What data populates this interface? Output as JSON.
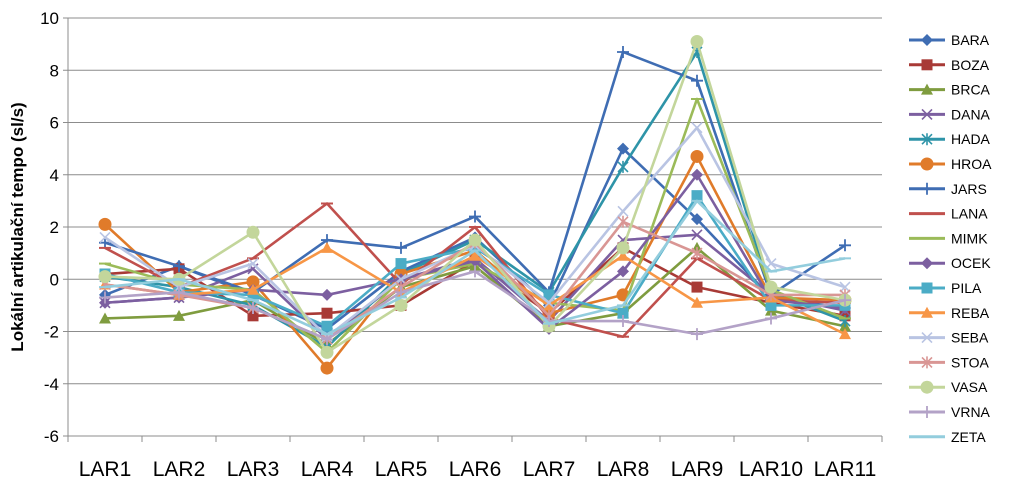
{
  "chart_data": {
    "type": "line",
    "ylabel": "Lokální artikulační tempo (sl/s)",
    "xlabel": "",
    "ylim": [
      -6,
      10
    ],
    "yticks": [
      -6,
      -4,
      -2,
      0,
      2,
      4,
      6,
      8,
      10
    ],
    "grid": "horizontal",
    "legend_placement": "right",
    "categories": [
      "LAR1",
      "LAR2",
      "LAR3",
      "LAR4",
      "LAR5",
      "LAR6",
      "LAR7",
      "LAR8",
      "LAR9",
      "LAR10",
      "LAR11"
    ],
    "series": [
      {
        "name": "BARA",
        "color": "#3F6DB3",
        "marker": "diamond",
        "values": [
          -0.6,
          0.5,
          -0.6,
          -1.9,
          0.3,
          1.6,
          -1.0,
          5.0,
          2.3,
          -0.7,
          -1.1
        ]
      },
      {
        "name": "BOZA",
        "color": "#A83A36",
        "marker": "square",
        "values": [
          0.2,
          0.4,
          -1.4,
          -1.3,
          -1.0,
          0.7,
          -1.3,
          1.2,
          -0.3,
          -0.9,
          -1.4
        ]
      },
      {
        "name": "BRCA",
        "color": "#7F9C3F",
        "marker": "triangle",
        "values": [
          -1.5,
          -1.4,
          -0.8,
          -2.5,
          -0.3,
          0.5,
          -1.8,
          -1.3,
          1.2,
          -1.2,
          -1.8
        ]
      },
      {
        "name": "DANA",
        "color": "#7C5FA0",
        "marker": "x",
        "values": [
          -0.9,
          -0.7,
          0.4,
          -2.3,
          0.0,
          0.8,
          -1.6,
          1.5,
          1.7,
          -0.6,
          -1.2
        ]
      },
      {
        "name": "HADA",
        "color": "#2E94A8",
        "marker": "asterisk",
        "values": [
          0.1,
          -0.3,
          -1.0,
          -2.6,
          0.2,
          1.5,
          -0.5,
          4.3,
          8.7,
          -0.5,
          -1.6
        ]
      },
      {
        "name": "HROA",
        "color": "#E07B2A",
        "marker": "circle",
        "values": [
          2.1,
          -0.5,
          -0.1,
          -3.4,
          0.2,
          1.1,
          -1.3,
          -0.6,
          4.7,
          -0.7,
          -0.8
        ]
      },
      {
        "name": "JARS",
        "color": "#3F6DB3",
        "marker": "plus",
        "values": [
          1.4,
          0.5,
          -0.5,
          1.5,
          1.2,
          2.4,
          -0.5,
          8.7,
          7.6,
          -0.6,
          1.3
        ]
      },
      {
        "name": "LANA",
        "color": "#C0504D",
        "marker": "dash",
        "values": [
          1.2,
          -0.3,
          0.8,
          2.9,
          -0.2,
          2.0,
          -1.5,
          -2.2,
          0.8,
          -0.8,
          -0.9
        ]
      },
      {
        "name": "MIMK",
        "color": "#9BBB59",
        "marker": "dash",
        "values": [
          0.6,
          -0.2,
          -0.4,
          -2.8,
          0.0,
          0.6,
          -0.9,
          -1.2,
          6.9,
          -0.4,
          -1.5
        ]
      },
      {
        "name": "OCEK",
        "color": "#7C5FA0",
        "marker": "diamond",
        "values": [
          -0.9,
          -0.7,
          -0.4,
          -0.6,
          0.0,
          0.7,
          -1.9,
          0.3,
          4.0,
          -0.8,
          -1.1
        ]
      },
      {
        "name": "PILA",
        "color": "#4BACC6",
        "marker": "square",
        "values": [
          0.2,
          -0.5,
          -0.6,
          -1.8,
          0.6,
          1.2,
          -0.6,
          -1.3,
          3.2,
          -1.0,
          -1.0
        ]
      },
      {
        "name": "REBA",
        "color": "#F79646",
        "marker": "triangle",
        "values": [
          -0.2,
          -0.6,
          -0.4,
          1.2,
          -0.5,
          0.9,
          -1.0,
          0.9,
          -0.9,
          -0.7,
          -2.1
        ]
      },
      {
        "name": "SEBA",
        "color": "#B9C4E3",
        "marker": "x",
        "values": [
          1.6,
          -0.3,
          0.6,
          -2.2,
          0.0,
          1.3,
          -0.9,
          2.6,
          5.8,
          0.6,
          -0.3
        ]
      },
      {
        "name": "STOA",
        "color": "#D99694",
        "marker": "asterisk",
        "values": [
          -0.2,
          -0.6,
          -1.1,
          -2.3,
          -0.3,
          1.4,
          -1.4,
          2.2,
          1.0,
          -0.6,
          -0.6
        ]
      },
      {
        "name": "VASA",
        "color": "#C3D69B",
        "marker": "circle",
        "values": [
          0.1,
          0.0,
          1.8,
          -2.8,
          -1.0,
          1.5,
          -1.8,
          1.2,
          9.1,
          -0.3,
          -0.8
        ]
      },
      {
        "name": "VRNA",
        "color": "#B3A2C7",
        "marker": "plus",
        "values": [
          -0.7,
          -0.5,
          -1.1,
          -2.3,
          -0.5,
          0.3,
          -1.6,
          -1.6,
          -2.1,
          -1.5,
          -0.8
        ]
      },
      {
        "name": "ZETA",
        "color": "#93CDDD",
        "marker": "dash",
        "values": [
          -0.3,
          0.0,
          -0.8,
          -2.1,
          -0.7,
          1.1,
          -1.7,
          -1.0,
          3.0,
          0.3,
          0.8
        ]
      }
    ]
  }
}
